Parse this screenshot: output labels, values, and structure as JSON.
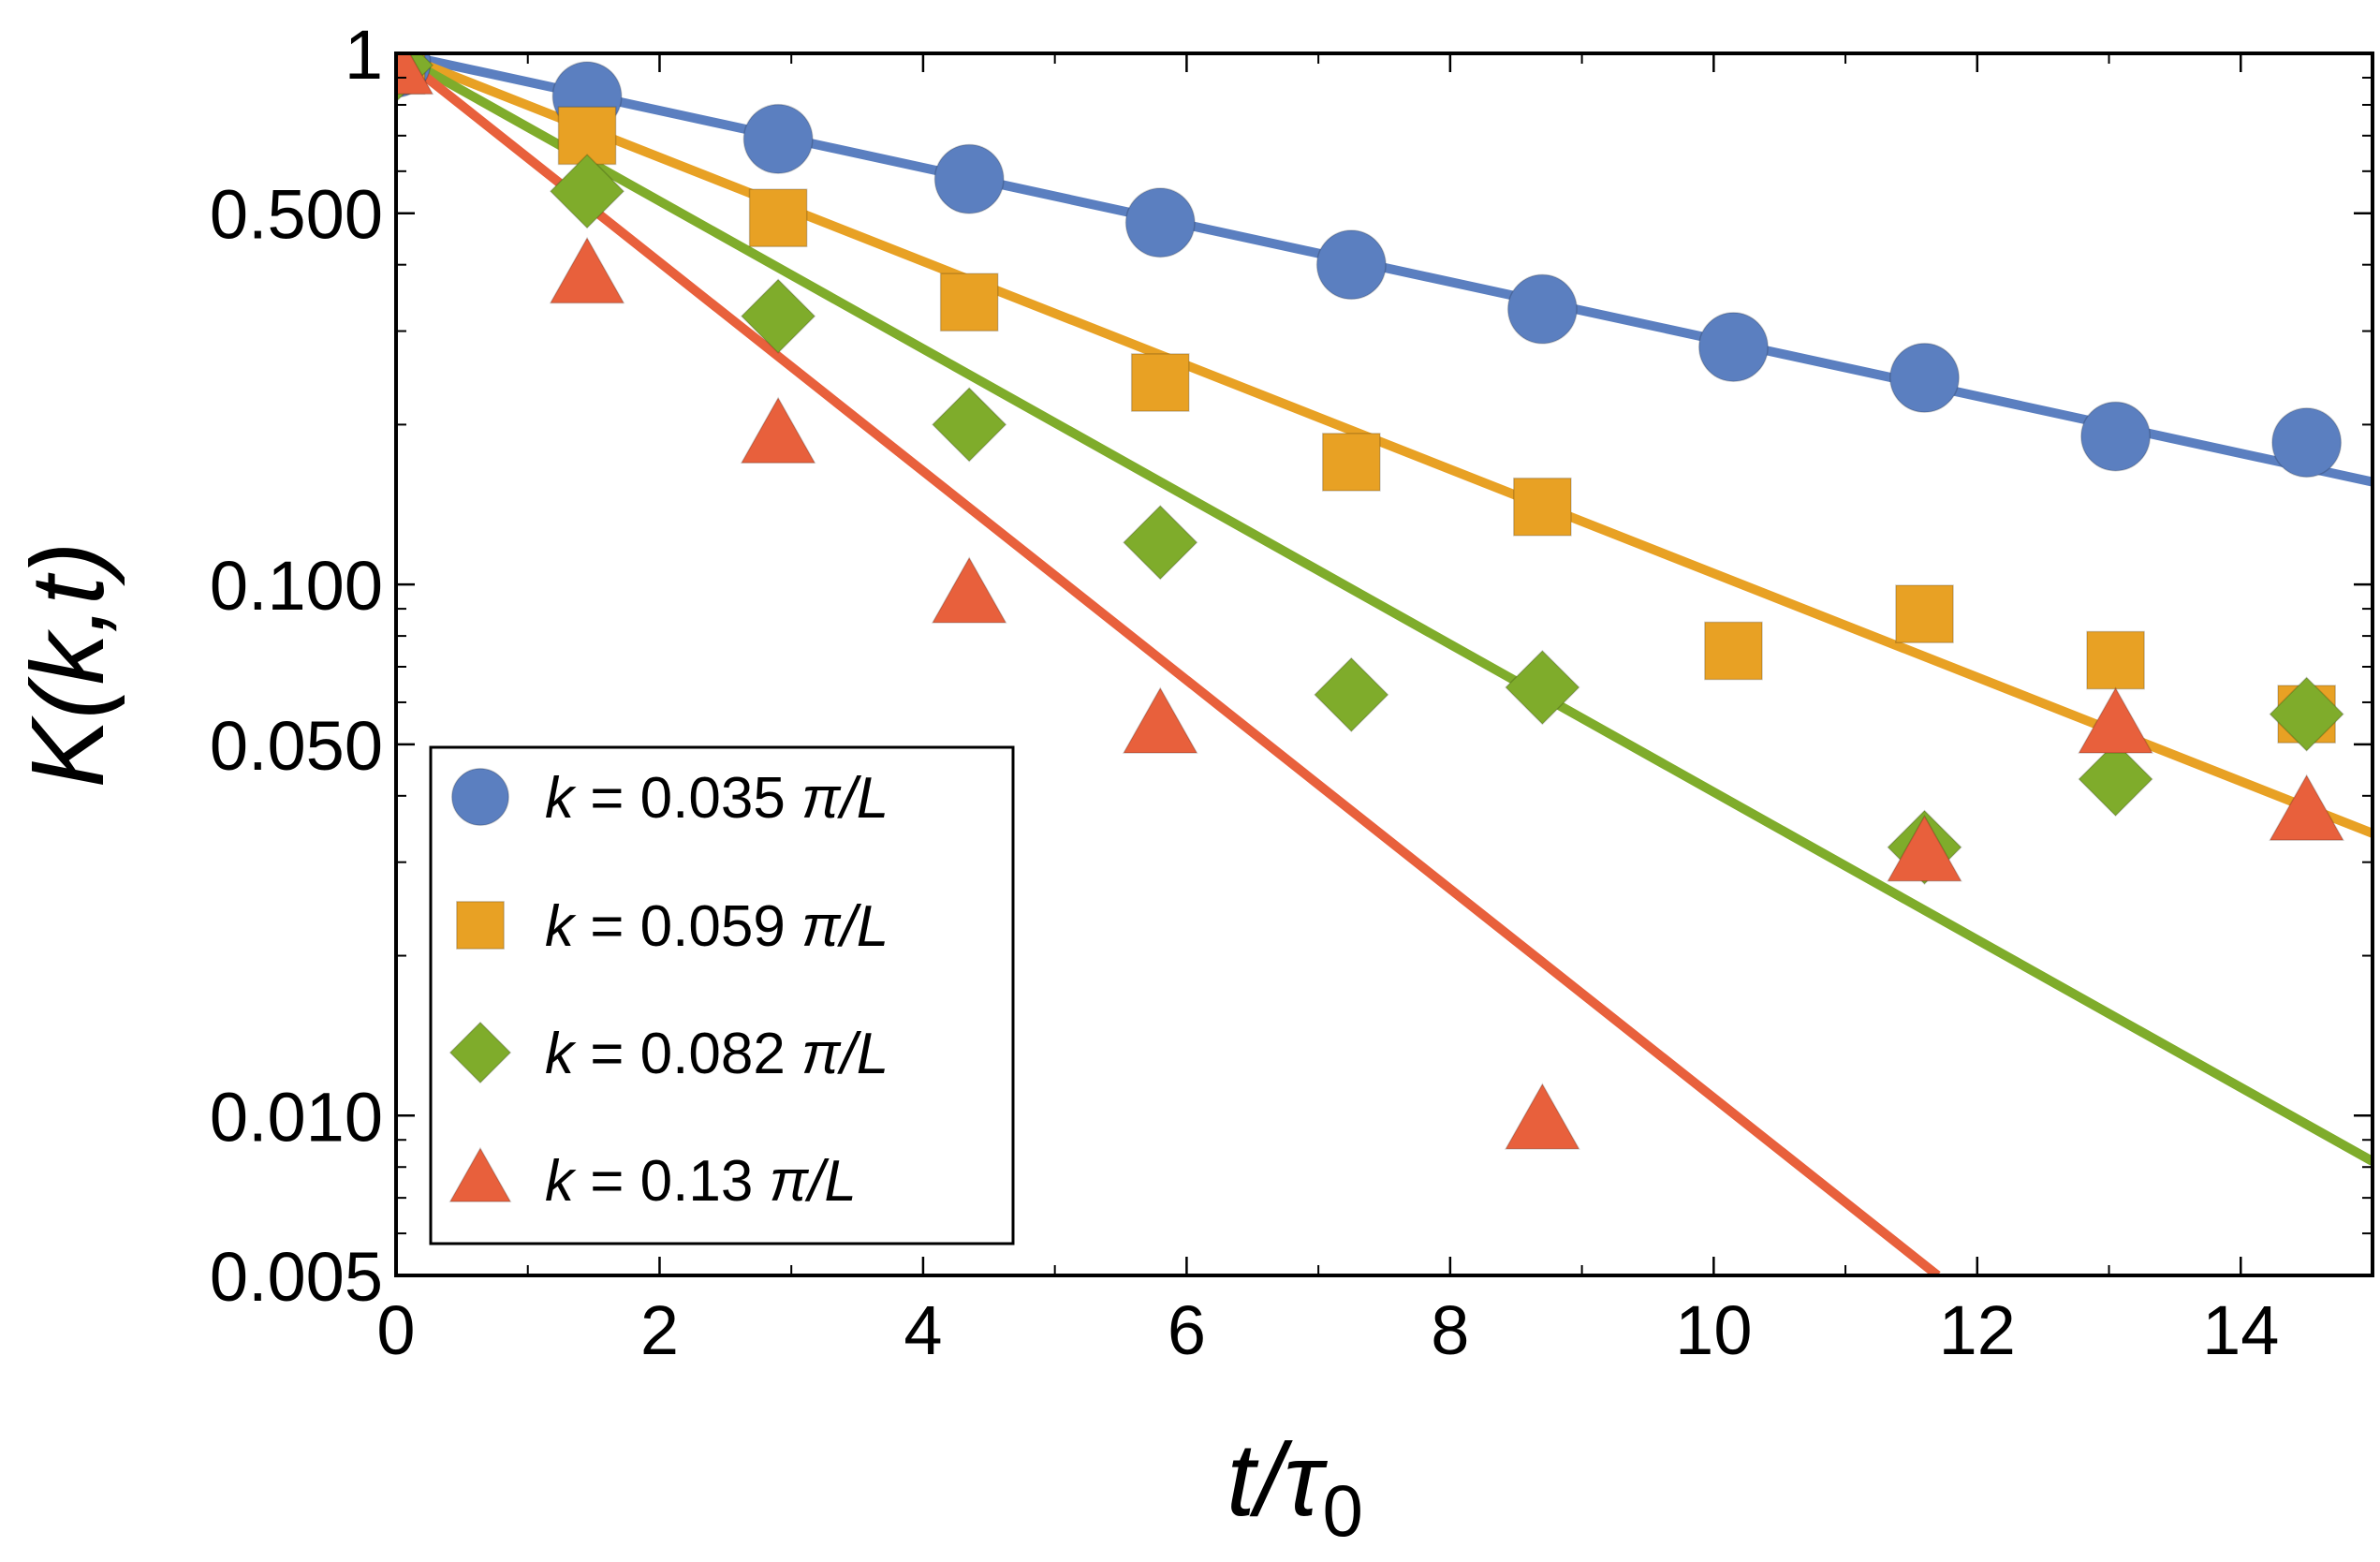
{
  "chart_data": {
    "type": "scatter",
    "title": "",
    "xlabel_main": "t/τ",
    "xlabel_sub": "0",
    "ylabel": "K(k,t)",
    "xlim": [
      0,
      15
    ],
    "ylim": [
      0.005,
      1
    ],
    "yscale": "log",
    "x_ticks": [
      0,
      2,
      4,
      6,
      8,
      10,
      12,
      14
    ],
    "x_tick_labels": [
      "0",
      "2",
      "4",
      "6",
      "8",
      "10",
      "12",
      "14"
    ],
    "y_ticks": [
      1,
      0.5,
      0.1,
      0.05,
      0.01,
      0.005
    ],
    "y_tick_labels": [
      "1",
      "0.500",
      "0.100",
      "0.050",
      "0.010",
      "0.005"
    ],
    "legend_position": "bottom-left",
    "series": [
      {
        "name": "k = 0.035 π/L",
        "k_label": "k",
        "value_label": " = 0.035 ",
        "unit_label": "π/L",
        "marker": "circle",
        "color": "#5b7fc0",
        "x": [
          0,
          1.45,
          2.9,
          4.35,
          5.8,
          7.25,
          8.7,
          10.15,
          11.6,
          13.05,
          14.5
        ],
        "y": [
          0.96,
          0.83,
          0.69,
          0.58,
          0.48,
          0.4,
          0.33,
          0.28,
          0.245,
          0.19,
          0.185
        ],
        "fit": {
          "x": [
            0,
            15
          ],
          "y": [
            1,
            0.156
          ]
        }
      },
      {
        "name": "k = 0.059 π/L",
        "k_label": "k",
        "value_label": " = 0.059 ",
        "unit_label": "π/L",
        "marker": "square",
        "color": "#e8a124",
        "x": [
          0,
          1.45,
          2.9,
          4.35,
          5.8,
          7.25,
          8.7,
          10.15,
          11.6,
          13.05,
          14.5
        ],
        "y": [
          0.95,
          0.7,
          0.49,
          0.34,
          0.24,
          0.17,
          0.14,
          0.075,
          0.088,
          0.072,
          0.057
        ],
        "fit": {
          "x": [
            0,
            15
          ],
          "y": [
            1,
            0.034
          ]
        }
      },
      {
        "name": "k = 0.082 π/L",
        "k_label": "k",
        "value_label": " = 0.082 ",
        "unit_label": "π/L",
        "marker": "diamond",
        "color": "#7fac2b",
        "x": [
          0,
          1.45,
          2.9,
          4.35,
          5.8,
          7.25,
          8.7,
          10.15,
          11.6,
          13.05,
          14.5
        ],
        "y": [
          0.95,
          0.55,
          0.32,
          0.2,
          0.12,
          0.062,
          0.064,
          null,
          0.032,
          0.043,
          0.057
        ],
        "fit": {
          "x": [
            0,
            15
          ],
          "y": [
            1,
            0.0082
          ]
        }
      },
      {
        "name": "k = 0.13 π/L",
        "k_label": "k",
        "value_label": " = 0.13 ",
        "unit_label": "π/L",
        "marker": "triangle",
        "color": "#e8603c",
        "x": [
          0,
          1.45,
          2.9,
          4.35,
          5.8,
          7.25,
          8.7,
          10.15,
          11.6,
          13.05,
          14.5
        ],
        "y": [
          0.94,
          0.38,
          0.19,
          0.095,
          0.054,
          null,
          0.0097,
          null,
          0.031,
          0.054,
          0.037
        ],
        "fit": {
          "x": [
            0,
            11.7
          ],
          "y": [
            1,
            0.005
          ]
        }
      }
    ]
  }
}
